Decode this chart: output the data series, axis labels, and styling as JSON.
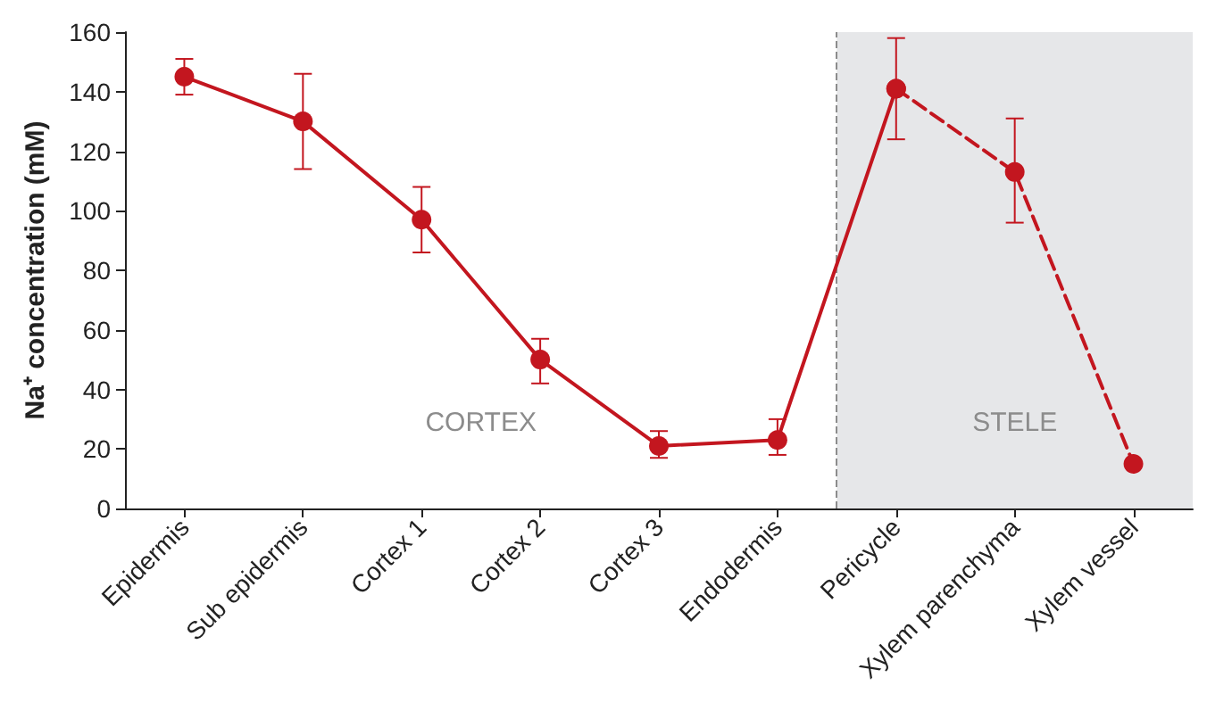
{
  "chart_data": {
    "type": "line",
    "ylabel": "Na⁺ concentration (mM)",
    "categories": [
      "Epidermis",
      "Sub epidermis",
      "Cortex 1",
      "Cortex 2",
      "Cortex 3",
      "Endodermis",
      "Pericycle",
      "Xylem parenchyma",
      "Xylem vessel"
    ],
    "series": [
      {
        "color": "#c3161f",
        "line_style": "solid",
        "values": [
          145,
          130,
          97,
          50,
          21,
          23,
          141,
          null,
          null
        ],
        "errors": [
          [
            139,
            151
          ],
          [
            114,
            146
          ],
          [
            86,
            108
          ],
          [
            42,
            57
          ],
          [
            17,
            26
          ],
          [
            18,
            30
          ],
          [
            124,
            158
          ],
          null,
          null
        ]
      },
      {
        "color": "#c3161f",
        "line_style": "dashed",
        "values": [
          null,
          null,
          null,
          null,
          null,
          null,
          141,
          113,
          15
        ],
        "errors": [
          null,
          null,
          null,
          null,
          null,
          null,
          null,
          [
            96,
            131
          ],
          null
        ]
      }
    ],
    "ylim": [
      0,
      160
    ],
    "yticks": [
      0,
      20,
      40,
      60,
      80,
      100,
      120,
      140,
      160
    ],
    "bands": [
      {
        "axis": "x",
        "from": "Pericycle",
        "to": "Xylem vessel",
        "color": "#e6e7e9"
      }
    ],
    "annotations": [
      "CORTEX",
      "STELE"
    ],
    "marker": "circle",
    "grid": false
  }
}
